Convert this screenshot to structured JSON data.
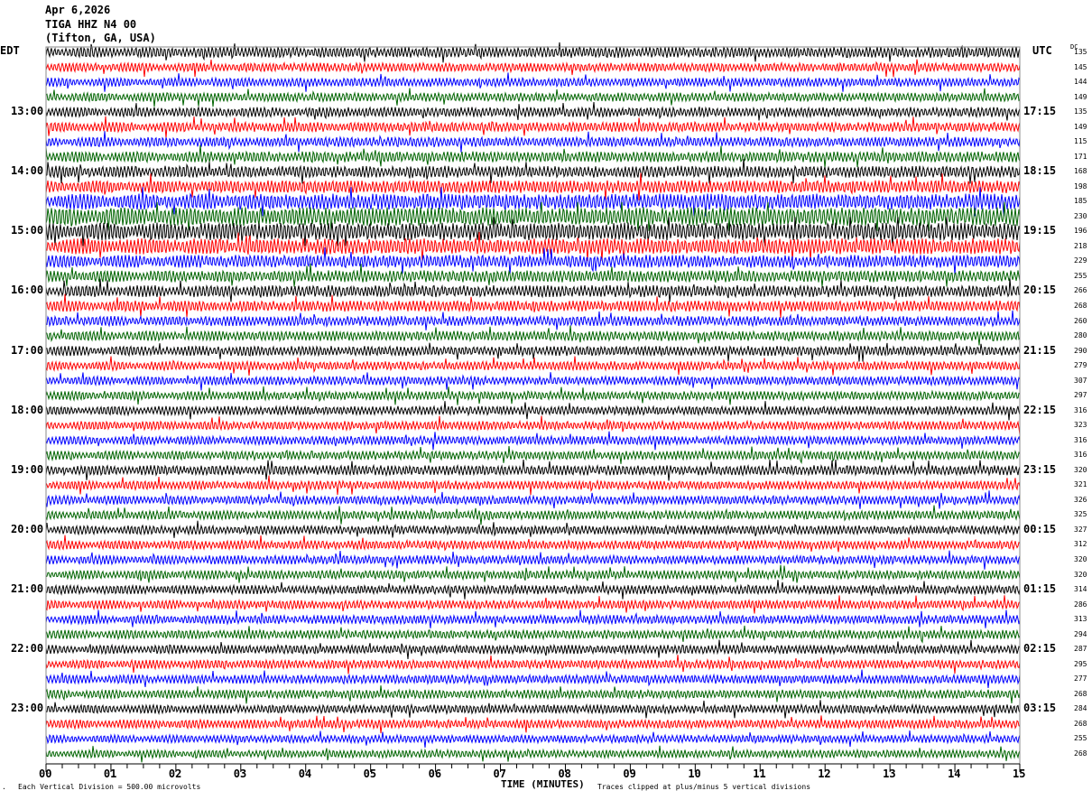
{
  "header": {
    "date": "Apr 6,2026",
    "station": "TIGA HHZ N4 00",
    "location": "(Tifton, GA, USA)"
  },
  "left_tz": "EDT",
  "right_tz": "UTC",
  "dc_label": "DC",
  "footer": {
    "scale": "Each Vertical Division =  500.00 microvolts",
    "xlabel": "TIME (MINUTES)",
    "clip_note": "Traces clipped at plus/minus 5 vertical divisions"
  },
  "chart_data": {
    "type": "line",
    "subtype": "helicorder",
    "xlabel": "TIME (MINUTES)",
    "xlim": [
      0,
      15
    ],
    "x_ticks": [
      "00",
      "01",
      "02",
      "03",
      "04",
      "05",
      "06",
      "07",
      "08",
      "09",
      "10",
      "11",
      "12",
      "13",
      "14",
      "15"
    ],
    "trace_colors": [
      "#000000",
      "#ff0000",
      "#0000ff",
      "#006400"
    ],
    "left_labels": [
      {
        "row": 4,
        "text": "13:00"
      },
      {
        "row": 8,
        "text": "14:00"
      },
      {
        "row": 12,
        "text": "15:00"
      },
      {
        "row": 16,
        "text": "16:00"
      },
      {
        "row": 20,
        "text": "17:00"
      },
      {
        "row": 24,
        "text": "18:00"
      },
      {
        "row": 28,
        "text": "19:00"
      },
      {
        "row": 32,
        "text": "20:00"
      },
      {
        "row": 36,
        "text": "21:00"
      },
      {
        "row": 40,
        "text": "22:00"
      },
      {
        "row": 44,
        "text": "23:00"
      }
    ],
    "right_labels": [
      {
        "row": 4,
        "text": "17:15"
      },
      {
        "row": 8,
        "text": "18:15"
      },
      {
        "row": 12,
        "text": "19:15"
      },
      {
        "row": 16,
        "text": "20:15"
      },
      {
        "row": 20,
        "text": "21:15"
      },
      {
        "row": 24,
        "text": "22:15"
      },
      {
        "row": 28,
        "text": "23:15"
      },
      {
        "row": 32,
        "text": "00:15"
      },
      {
        "row": 36,
        "text": "01:15"
      },
      {
        "row": 40,
        "text": "02:15"
      },
      {
        "row": 44,
        "text": "03:15"
      }
    ],
    "dc_values": [
      "135",
      "145",
      "144",
      "149",
      "135",
      "149",
      "115",
      "171",
      "168",
      "198",
      "185",
      "230",
      "196",
      "218",
      "229",
      "255",
      "266",
      "268",
      "260",
      "280",
      "290",
      "279",
      "307",
      "297",
      "316",
      "323",
      "316",
      "316",
      "320",
      "321",
      "326",
      "325",
      "327",
      "312",
      "320",
      "320",
      "314",
      "286",
      "313",
      "294",
      "287",
      "295",
      "277",
      "268",
      "284",
      "268",
      "255",
      "268"
    ],
    "relative_amplitude": [
      1.1,
      0.9,
      0.9,
      0.9,
      1.0,
      1.0,
      1.0,
      1.1,
      1.2,
      1.3,
      1.6,
      1.9,
      1.8,
      1.6,
      1.3,
      1.2,
      1.2,
      1.1,
      1.0,
      1.0,
      1.0,
      0.9,
      0.9,
      0.9,
      0.9,
      0.9,
      0.9,
      0.9,
      1.0,
      0.9,
      0.9,
      0.9,
      0.9,
      0.9,
      0.9,
      0.9,
      0.9,
      0.9,
      0.9,
      0.9,
      0.9,
      0.9,
      0.9,
      0.9,
      0.9,
      0.9,
      0.8,
      0.8
    ]
  }
}
